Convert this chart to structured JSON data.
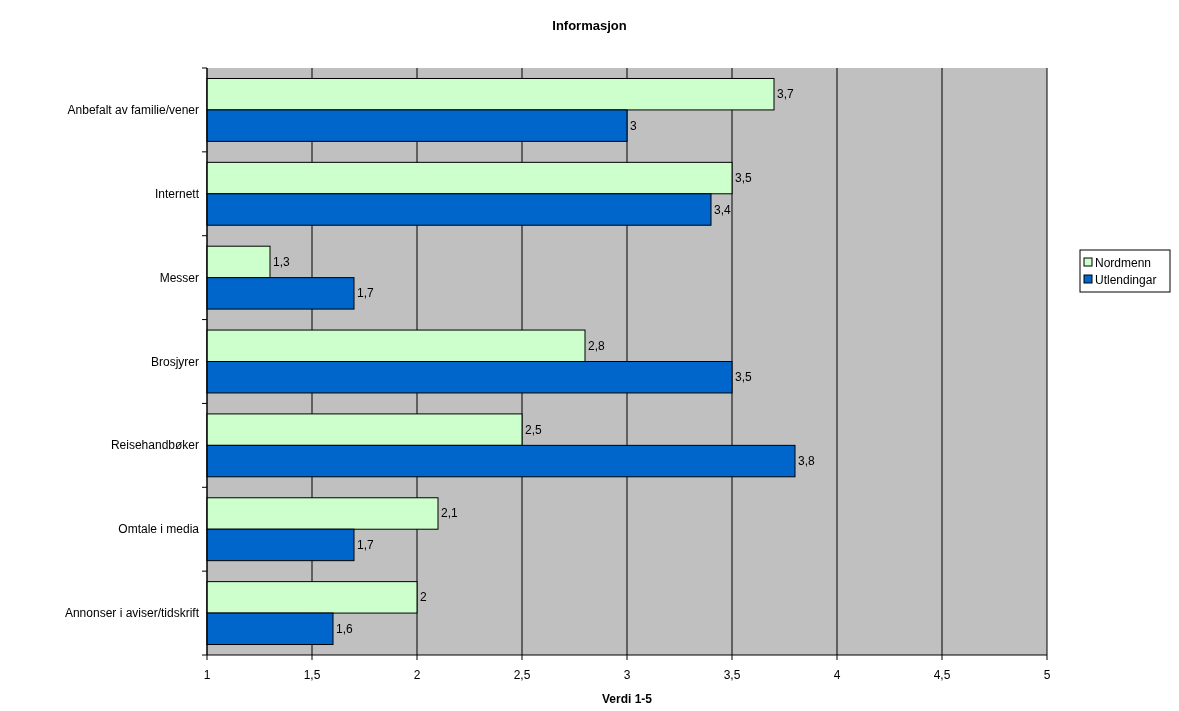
{
  "chart_data": {
    "type": "bar",
    "orientation": "horizontal",
    "title": "Informasjon",
    "xlabel": "Verdi 1-5",
    "categories": [
      "Anbefalt av familie/vener",
      "Internett",
      "Messer",
      "Brosjyrer",
      "Reisehandbøker",
      "Omtale i media",
      "Annonser i aviser/tidskrift"
    ],
    "series": [
      {
        "name": "Nordmenn",
        "color": "#ccffcc",
        "values": [
          3.7,
          3.5,
          1.3,
          2.8,
          2.5,
          2.1,
          2
        ],
        "value_labels": [
          "3,7",
          "3,5",
          "1,3",
          "2,8",
          "2,5",
          "2,1",
          "2"
        ]
      },
      {
        "name": "Utlendingar",
        "color": "#0066cc",
        "values": [
          3,
          3.4,
          1.7,
          3.5,
          3.8,
          1.7,
          1.6
        ],
        "value_labels": [
          "3",
          "3,4",
          "1,7",
          "3,5",
          "3,8",
          "1,7",
          "1,6"
        ]
      }
    ],
    "xlim": [
      1,
      5
    ],
    "xticks": [
      1,
      {
        "value": 1.5,
        "label": "1,5"
      },
      2,
      {
        "value": 2.5,
        "label": "2,5"
      },
      3,
      {
        "value": 3.5,
        "label": "3,5"
      },
      4,
      {
        "value": 4.5,
        "label": "4,5"
      },
      5
    ],
    "grid": "x",
    "legend": "right"
  }
}
